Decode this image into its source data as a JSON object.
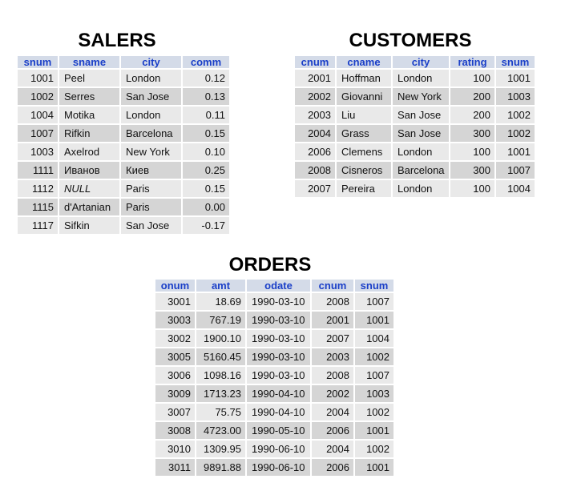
{
  "salers": {
    "title": "SALERS",
    "columns": [
      "snum",
      "sname",
      "city",
      "comm"
    ],
    "rows": [
      [
        "1001",
        "Peel",
        "London",
        "0.12"
      ],
      [
        "1002",
        "Serres",
        "San Jose",
        "0.13"
      ],
      [
        "1004",
        "Motika",
        "London",
        "0.11"
      ],
      [
        "1007",
        "Rifkin",
        "Barcelona",
        "0.15"
      ],
      [
        "1003",
        "Axelrod",
        "New York",
        "0.10"
      ],
      [
        "1111",
        "Иванов",
        "Киев",
        "0.25"
      ],
      [
        "1112",
        "NULL",
        "Paris",
        "0.15"
      ],
      [
        "1115",
        "d'Artanian",
        "Paris",
        "0.00"
      ],
      [
        "1117",
        "Sifkin",
        "San Jose",
        "-0.17"
      ]
    ]
  },
  "customers": {
    "title": "CUSTOMERS",
    "columns": [
      "cnum",
      "cname",
      "city",
      "rating",
      "snum"
    ],
    "rows": [
      [
        "2001",
        "Hoffman",
        "London",
        "100",
        "1001"
      ],
      [
        "2002",
        "Giovanni",
        "New York",
        "200",
        "1003"
      ],
      [
        "2003",
        "Liu",
        "San Jose",
        "200",
        "1002"
      ],
      [
        "2004",
        "Grass",
        "San Jose",
        "300",
        "1002"
      ],
      [
        "2006",
        "Clemens",
        "London",
        "100",
        "1001"
      ],
      [
        "2008",
        "Cisneros",
        "Barcelona",
        "300",
        "1007"
      ],
      [
        "2007",
        "Pereira",
        "London",
        "100",
        "1004"
      ]
    ]
  },
  "orders": {
    "title": "ORDERS",
    "columns": [
      "onum",
      "amt",
      "odate",
      "cnum",
      "snum"
    ],
    "rows": [
      [
        "3001",
        "18.69",
        "1990-03-10",
        "2008",
        "1007"
      ],
      [
        "3003",
        "767.19",
        "1990-03-10",
        "2001",
        "1001"
      ],
      [
        "3002",
        "1900.10",
        "1990-03-10",
        "2007",
        "1004"
      ],
      [
        "3005",
        "5160.45",
        "1990-03-10",
        "2003",
        "1002"
      ],
      [
        "3006",
        "1098.16",
        "1990-03-10",
        "2008",
        "1007"
      ],
      [
        "3009",
        "1713.23",
        "1990-04-10",
        "2002",
        "1003"
      ],
      [
        "3007",
        "75.75",
        "1990-04-10",
        "2004",
        "1002"
      ],
      [
        "3008",
        "4723.00",
        "1990-05-10",
        "2006",
        "1001"
      ],
      [
        "3010",
        "1309.95",
        "1990-06-10",
        "2004",
        "1002"
      ],
      [
        "3011",
        "9891.88",
        "1990-06-10",
        "2006",
        "1001"
      ]
    ]
  }
}
